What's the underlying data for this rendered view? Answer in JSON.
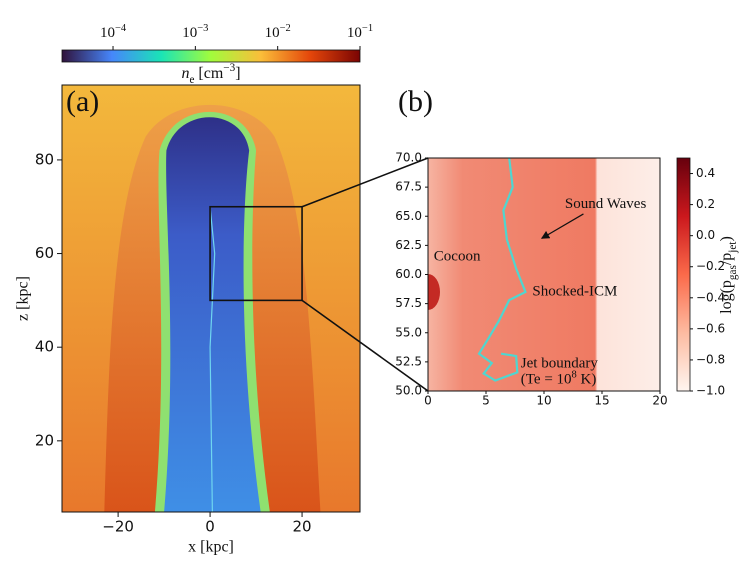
{
  "chart_data": [
    {
      "type": "image",
      "panel_label": "(a)",
      "xlabel": "x [kpc]",
      "ylabel": "z [kpc]",
      "xlim": [
        -32.2,
        32.6
      ],
      "ylim": [
        4.8,
        96
      ],
      "xticks": [
        {
          "value": -20,
          "label": "−20"
        },
        0,
        20
      ],
      "yticks": [
        20,
        40,
        60,
        80
      ],
      "colorbar": {
        "position": "top",
        "log": true,
        "lim": [
          2.4e-05,
          0.1
        ],
        "colors": [
          "#30123b",
          "#4686fb",
          "#1ae4b6",
          "#a2fc3c",
          "#fabe3a",
          "#e4460a",
          "#7a0403"
        ],
        "label": [
          {
            "text": "n",
            "style": "italic"
          },
          {
            "text": "e",
            "style": "sub"
          },
          {
            "text": " [cm"
          },
          {
            "text": "−3",
            "style": "sup"
          },
          {
            "text": "]"
          }
        ],
        "ticks": [
          {
            "value": 0.0001,
            "label": "10",
            "exponent": "−4"
          },
          {
            "value": 0.001,
            "label": "10",
            "exponent": "−3"
          },
          {
            "value": 0.01,
            "label": "10",
            "exponent": "−2"
          },
          {
            "value": 0.1,
            "label": "10",
            "exponent": "−1"
          }
        ]
      }
    },
    {
      "type": "image",
      "panel_label": "(b)",
      "xlim": [
        0,
        20
      ],
      "ylim": [
        50,
        70
      ],
      "xticks": [
        0,
        5,
        10,
        15,
        20
      ],
      "yticks": [
        {
          "value": 50,
          "label": "50.0"
        },
        52.5,
        {
          "value": 55,
          "label": "55.0"
        },
        57.5,
        {
          "value": 60,
          "label": "60.0"
        },
        62.5,
        {
          "value": 65,
          "label": "65.0"
        },
        67.5,
        {
          "value": 70,
          "label": "70.0"
        }
      ],
      "colorbar": {
        "position": "right",
        "log": false,
        "lim": [
          -1.0,
          0.5
        ],
        "colors": [
          "#fff5f0",
          "#fcbba1",
          "#fb6a4a",
          "#cb181d",
          "#67000d"
        ],
        "label": [
          {
            "text": "log(p"
          },
          {
            "text": "gas",
            "style": "sub"
          },
          {
            "text": "/p"
          },
          {
            "text": "jet",
            "style": "sub"
          },
          {
            "text": ")"
          }
        ],
        "ticks": [
          0.4,
          0.2,
          {
            "value": 0,
            "label": "0.0"
          },
          {
            "value": -0.2,
            "label": "−0.2"
          },
          {
            "value": -0.4,
            "label": "−0.4"
          },
          {
            "value": -0.6,
            "label": "−0.6"
          },
          {
            "value": -0.8,
            "label": "−0.8"
          },
          {
            "value": -1.0,
            "label": "−1.0"
          }
        ]
      },
      "annotations": {
        "cocoon": "Cocoon",
        "sound_waves": "Sound Waves",
        "shocked_icm": "Shocked-ICM",
        "jet_boundary": "Jet boundary",
        "temperature": [
          {
            "text": "(Te = 10"
          },
          {
            "text": "8",
            "style": "sup"
          },
          {
            "text": " K)"
          }
        ]
      }
    }
  ]
}
